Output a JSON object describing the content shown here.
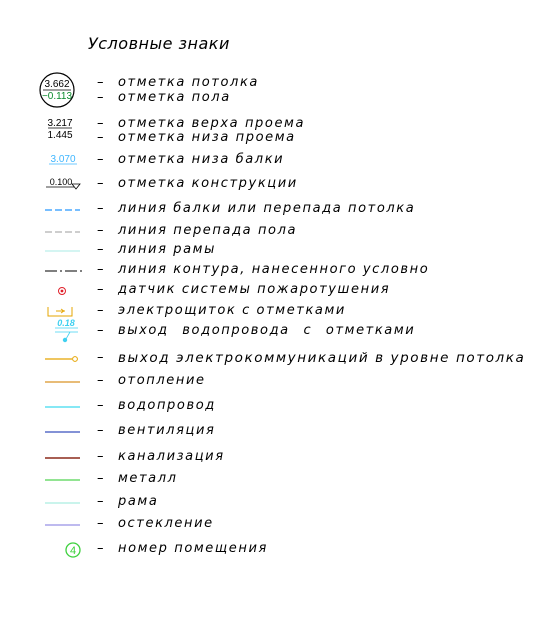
{
  "title": "Условные знаки",
  "items": [
    {
      "label": "отметка потолка",
      "icon": "circled-elevation-icon",
      "values": [
        "3.662",
        "−0.113"
      ]
    },
    {
      "label": "отметка пола"
    },
    {
      "label": "отметка верха проема",
      "values": [
        "3.217"
      ]
    },
    {
      "label": "отметка низа проема",
      "values": [
        "1.445"
      ]
    },
    {
      "label": "отметка низа балки",
      "values": [
        "3.070"
      ],
      "color": "#3fb6ff"
    },
    {
      "label": "отметка конструкции",
      "values": [
        "0.100"
      ]
    },
    {
      "label": "линия балки или перепада потолка",
      "line": "dashed",
      "color": "#4aa8ff"
    },
    {
      "label": "линия перепада пола",
      "line": "dashed",
      "color": "#bdbdbd"
    },
    {
      "label": "линия рамы",
      "line": "solid",
      "color": "#c6f2ee"
    },
    {
      "label": "линия контура, нанесенного условно",
      "line": "dash-dot",
      "color": "#555555"
    },
    {
      "label": "датчик системы пожаротушения",
      "icon": "fire-sensor-icon",
      "color": "#e0202a"
    },
    {
      "label": "электрощиток с отметками",
      "icon": "electrical-panel-icon",
      "color": "#e5a400"
    },
    {
      "label": "выход водопровода с отметками",
      "icon": "water-outlet-icon",
      "values": [
        "0.18"
      ],
      "color": "#3fd0f0"
    },
    {
      "label": "выход электрокоммуникаций в уровне потолка",
      "icon": "ceiling-electrical-outlet-icon",
      "color": "#e5a400"
    },
    {
      "label": "отопление",
      "line": "solid",
      "color": "#e0a64a"
    },
    {
      "label": "водопровод",
      "line": "solid",
      "color": "#5ee0f2"
    },
    {
      "label": "вентиляция",
      "line": "solid",
      "color": "#5a6fc8"
    },
    {
      "label": "канализация",
      "line": "solid",
      "color": "#8b2a1a"
    },
    {
      "label": "металл",
      "line": "solid",
      "color": "#6fdc6f"
    },
    {
      "label": "рама",
      "line": "solid",
      "color": "#b9f0e6"
    },
    {
      "label": "остекление",
      "line": "solid",
      "color": "#a9a4ea"
    },
    {
      "label": "номер помещения",
      "icon": "room-number-icon",
      "values": [
        "4"
      ],
      "color": "#3cd03c"
    }
  ]
}
